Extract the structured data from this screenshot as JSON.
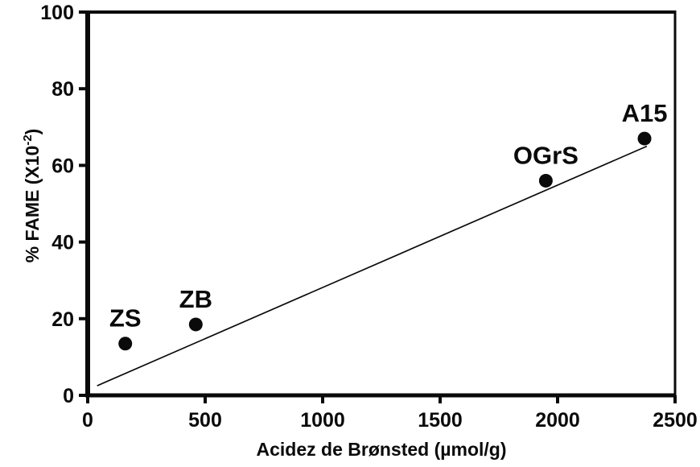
{
  "chart_data": {
    "type": "scatter",
    "title": "",
    "xlabel": "Acidez de Brønsted (µmol/g)",
    "ylabel": {
      "base": "% FAME (X10",
      "superscript": "-2",
      "suffix": ")"
    },
    "xlim": [
      0,
      2500
    ],
    "ylim": [
      0,
      100
    ],
    "x_ticks": [
      0,
      500,
      1000,
      1500,
      2000,
      2500
    ],
    "y_ticks": [
      0,
      20,
      40,
      60,
      80,
      100
    ],
    "grid": false,
    "legend": null,
    "points": [
      {
        "label": "ZS",
        "x": 160,
        "y": 13.5
      },
      {
        "label": "ZB",
        "x": 460,
        "y": 18.5
      },
      {
        "label": "OGrS",
        "x": 1950,
        "y": 56
      },
      {
        "label": "A15",
        "x": 2370,
        "y": 67
      }
    ],
    "trend_line": {
      "x1": 40,
      "y1": 2.5,
      "x2": 2380,
      "y2": 65
    },
    "colors": {
      "point": "#0a0a0a",
      "line": "#0a0a0a",
      "axis": "#0a0a0a",
      "text": "#0a0a0a",
      "background": "#ffffff"
    }
  }
}
